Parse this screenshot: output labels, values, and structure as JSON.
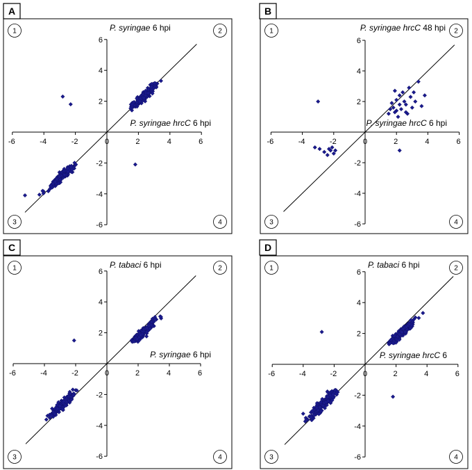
{
  "panels": [
    {
      "id": "A",
      "label": "A",
      "chart_data": {
        "type": "scatter",
        "title": "",
        "xlabel_italic": "P. syringae hrcC",
        "xlabel_rest": " 6 hpi",
        "ylabel_italic": "P. syringae",
        "ylabel_rest": "  6 hpi",
        "xlim": [
          -6,
          6
        ],
        "ylim": [
          -6,
          6
        ],
        "x_ticks": [
          "-6",
          "-4",
          "-2",
          "0",
          "2",
          "4",
          "6"
        ],
        "y_ticks": [
          "-6",
          "-4",
          "-2",
          "2",
          "4",
          "6"
        ],
        "marker_color": "#1a1a8c",
        "diagonal": true,
        "quadrants": [
          "1",
          "2",
          "3",
          "4"
        ],
        "clusters": [
          {
            "cx": 2.3,
            "cy": 2.3,
            "sx": 0.45,
            "sy": 0.4,
            "n": 190,
            "xmin": 1.5,
            "xmax": 3.7,
            "ymin": 1.4,
            "ymax": 3.9
          },
          {
            "cx": -2.8,
            "cy": -2.8,
            "sx": 0.4,
            "sy": 0.35,
            "n": 190,
            "xmin": -5.3,
            "xmax": -1.8,
            "ymin": -4.2,
            "ymax": -1.9
          }
        ],
        "outliers": [
          [
            -2.8,
            2.3
          ],
          [
            -2.3,
            1.8
          ],
          [
            1.8,
            -2.1
          ],
          [
            -5.2,
            -4.1
          ]
        ]
      }
    },
    {
      "id": "B",
      "label": "B",
      "chart_data": {
        "type": "scatter",
        "title": "",
        "xlabel_italic": "P. syringae hrcC",
        "xlabel_rest": " 6 hpi",
        "ylabel_italic": "P. syringae hrcC",
        "ylabel_rest": " 48 hpi",
        "xlim": [
          -6,
          6
        ],
        "ylim": [
          -6,
          6
        ],
        "x_ticks": [
          "-6",
          "-4",
          "-2",
          "0",
          "2",
          "4",
          "6"
        ],
        "y_ticks": [
          "-6",
          "-4",
          "-2",
          "2",
          "4",
          "6"
        ],
        "marker_color": "#1a1a8c",
        "diagonal": true,
        "quadrants": [
          "1",
          "2",
          "3",
          "4"
        ],
        "clusters": [],
        "outliers": [
          [
            -3.0,
            2.0
          ],
          [
            1.5,
            1.2
          ],
          [
            1.8,
            1.6
          ],
          [
            2.0,
            2.1
          ],
          [
            2.2,
            2.4
          ],
          [
            2.4,
            2.6
          ],
          [
            2.6,
            1.3
          ],
          [
            2.8,
            2.9
          ],
          [
            3.0,
            1.6
          ],
          [
            3.2,
            2.0
          ],
          [
            3.4,
            3.3
          ],
          [
            2.1,
            1.0
          ],
          [
            1.7,
            1.9
          ],
          [
            2.3,
            1.5
          ],
          [
            2.5,
            2.0
          ],
          [
            1.9,
            2.7
          ],
          [
            2.9,
            2.3
          ],
          [
            3.6,
            1.7
          ],
          [
            3.8,
            2.4
          ],
          [
            2.0,
            1.4
          ],
          [
            2.6,
            1.8
          ],
          [
            1.6,
            1.5
          ],
          [
            2.2,
            1.8
          ],
          [
            3.1,
            2.6
          ],
          [
            2.7,
            1.2
          ],
          [
            1.9,
            1.3
          ],
          [
            2.2,
            -1.2
          ],
          [
            -3.2,
            -1.0
          ],
          [
            -2.9,
            -1.1
          ],
          [
            -2.6,
            -1.3
          ],
          [
            -2.4,
            -1.5
          ],
          [
            -2.2,
            -1.2
          ],
          [
            -2.0,
            -1.4
          ],
          [
            -2.1,
            -1.0
          ],
          [
            -2.3,
            -1.1
          ],
          [
            -1.9,
            -1.2
          ]
        ]
      }
    },
    {
      "id": "C",
      "label": "C",
      "chart_data": {
        "type": "scatter",
        "title": "",
        "xlabel_italic": "P. syringae",
        "xlabel_rest": "  6 hpi",
        "ylabel_italic": "P. tabaci",
        "ylabel_rest": " 6 hpi",
        "xlim": [
          -6,
          6
        ],
        "ylim": [
          -6,
          6
        ],
        "x_ticks": [
          "-6",
          "-4",
          "-2",
          "0",
          "2",
          "4",
          "6"
        ],
        "y_ticks": [
          "-6",
          "-4",
          "-2",
          "2",
          "4",
          "6"
        ],
        "marker_color": "#1a1a8c",
        "diagonal": true,
        "quadrants": [
          "1",
          "2",
          "3",
          "4"
        ],
        "clusters": [
          {
            "cx": 2.3,
            "cy": 2.0,
            "sx": 0.45,
            "sy": 0.4,
            "n": 190,
            "xmin": 1.5,
            "xmax": 3.8,
            "ymin": 1.4,
            "ymax": 3.6
          },
          {
            "cx": -2.8,
            "cy": -2.6,
            "sx": 0.45,
            "sy": 0.45,
            "n": 190,
            "xmin": -4.2,
            "xmax": -1.8,
            "ymin": -4.2,
            "ymax": -1.6
          }
        ],
        "outliers": [
          [
            -2.1,
            1.5
          ]
        ]
      }
    },
    {
      "id": "D",
      "label": "D",
      "chart_data": {
        "type": "scatter",
        "title": "",
        "xlabel_italic": "P. syringae hrcC",
        "xlabel_rest": " 6",
        "ylabel_italic": "P. tabaci",
        "ylabel_rest": " 6 hpi",
        "xlim": [
          -6,
          6
        ],
        "ylim": [
          -6,
          6
        ],
        "x_ticks": [
          "-6",
          "-4",
          "-2",
          "0",
          "2",
          "4",
          "6"
        ],
        "y_ticks": [
          "-6",
          "-4",
          "-2",
          "2",
          "4",
          "6"
        ],
        "marker_color": "#1a1a8c",
        "diagonal": true,
        "quadrants": [
          "1",
          "2",
          "3",
          "4"
        ],
        "clusters": [
          {
            "cx": 2.3,
            "cy": 2.0,
            "sx": 0.45,
            "sy": 0.4,
            "n": 180,
            "xmin": 1.5,
            "xmax": 3.8,
            "ymin": 1.3,
            "ymax": 3.6
          },
          {
            "cx": -2.7,
            "cy": -2.6,
            "sx": 0.5,
            "sy": 0.5,
            "n": 190,
            "xmin": -4.3,
            "xmax": -1.7,
            "ymin": -4.3,
            "ymax": -1.6
          }
        ],
        "outliers": [
          [
            -2.8,
            2.1
          ],
          [
            1.8,
            -2.1
          ],
          [
            -4.0,
            -3.2
          ],
          [
            -3.8,
            -3.6
          ]
        ]
      }
    }
  ]
}
